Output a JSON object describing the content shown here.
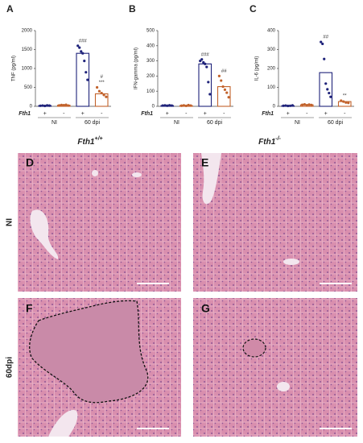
{
  "chart_data": [
    {
      "type": "bar",
      "panel": "A",
      "y_label": "TNF (pg/ml)",
      "row_label": "Fth1",
      "categories": [
        "+",
        "-",
        "+",
        "-"
      ],
      "groups": [
        "NI",
        "60 dpi"
      ],
      "values": [
        20,
        30,
        1400,
        330
      ],
      "colors": [
        "#1f237a",
        "#c2622b",
        "#1f237a",
        "#c2622b"
      ],
      "points": [
        [
          15,
          20,
          10,
          25,
          18
        ],
        [
          25,
          35,
          30,
          40,
          20
        ],
        [
          1600,
          1550,
          1450,
          1400,
          1200,
          900,
          700
        ],
        [
          500,
          400,
          350,
          300,
          250
        ]
      ],
      "significance": [
        null,
        null,
        [
          "###"
        ],
        [
          "#",
          "***"
        ]
      ],
      "ylim": [
        0,
        2000
      ],
      "yticks": [
        0,
        500,
        1000,
        1500,
        2000
      ]
    },
    {
      "type": "bar",
      "panel": "B",
      "y_label": "IFN-gamma (pg/ml)",
      "row_label": "Fth1",
      "categories": [
        "+",
        "-",
        "+",
        "-"
      ],
      "groups": [
        "NI",
        "60 dpi"
      ],
      "values": [
        5,
        5,
        280,
        130
      ],
      "colors": [
        "#1f237a",
        "#c2622b",
        "#1f237a",
        "#c2622b"
      ],
      "points": [
        [
          5,
          6,
          4,
          7,
          5
        ],
        [
          4,
          6,
          3,
          8,
          5
        ],
        [
          300,
          310,
          290,
          280,
          260,
          160,
          80
        ],
        [
          200,
          170,
          130,
          110,
          90,
          60
        ]
      ],
      "significance": [
        null,
        null,
        [
          "###"
        ],
        [
          "##"
        ]
      ],
      "ylim": [
        0,
        500
      ],
      "yticks": [
        0,
        100,
        200,
        300,
        400,
        500
      ]
    },
    {
      "type": "bar",
      "panel": "C",
      "y_label": "IL-6 (pg/ml)",
      "row_label": "Fth1",
      "categories": [
        "+",
        "-",
        "+",
        "-"
      ],
      "groups": [
        "NI",
        "60 dpi"
      ],
      "values": [
        3,
        8,
        178,
        25
      ],
      "colors": [
        "#1f237a",
        "#c2622b",
        "#1f237a",
        "#c2622b"
      ],
      "points": [
        [
          3,
          4,
          2,
          3,
          5
        ],
        [
          8,
          10,
          6,
          9,
          7
        ],
        [
          340,
          330,
          250,
          120,
          90,
          70,
          50
        ],
        [
          30,
          25,
          20,
          18
        ]
      ],
      "significance": [
        null,
        null,
        [
          "##"
        ],
        [
          "**"
        ]
      ],
      "ylim": [
        0,
        400
      ],
      "yticks": [
        0,
        100,
        200,
        300,
        400
      ]
    }
  ],
  "histology": {
    "column_headers": [
      {
        "text": "Fth1",
        "sup": "+/+"
      },
      {
        "text": "Fth1",
        "sup": "-/-"
      }
    ],
    "row_labels": [
      "NI",
      "60dpi"
    ],
    "panels": [
      "D",
      "E",
      "F",
      "G"
    ]
  }
}
